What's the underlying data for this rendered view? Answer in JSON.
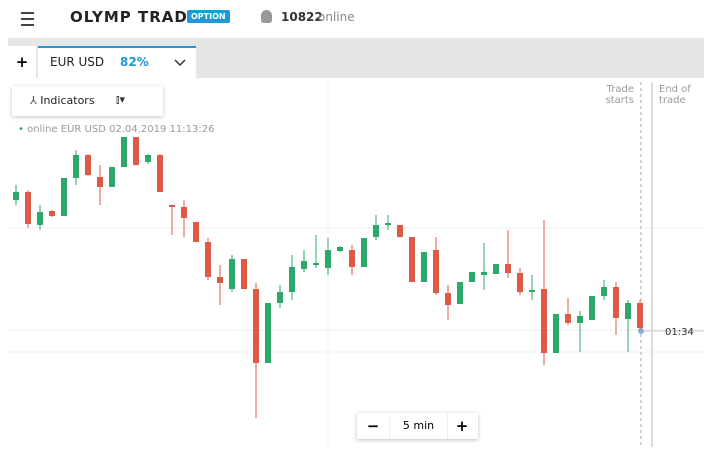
{
  "header": {
    "logo": "OLYMP TRADE",
    "badge": "OPTION",
    "online_count": "10822",
    "online_label": "online"
  },
  "tab": {
    "add": "+",
    "asset": "EUR USD",
    "payout": "82%"
  },
  "toolbar": {
    "indicators": "Indicators"
  },
  "chart_info": {
    "status": "online EUR USD",
    "timestamp": "02.04.2019 11:13:26"
  },
  "markers": {
    "trade_starts": "Trade starts",
    "end_of_trade": "End of trade",
    "timer": "01:34"
  },
  "zoom": {
    "minus": "−",
    "interval": "5 min",
    "plus": "+"
  },
  "chart_data": {
    "type": "candlestick",
    "up_color": "#2ea86a",
    "down_color": "#dd5a47",
    "ylim": [
      0,
      340
    ],
    "open": [
      250,
      258,
      225,
      239,
      234,
      272,
      295,
      273,
      263,
      283,
      313,
      288,
      295,
      245,
      243,
      228,
      208,
      173,
      161,
      191,
      161,
      87,
      147,
      158,
      181,
      185,
      182,
      199,
      200,
      183,
      213,
      225,
      225,
      213,
      168,
      200,
      157,
      146,
      168,
      175,
      176,
      186,
      177,
      158,
      161,
      97,
      136,
      127,
      130,
      154,
      163,
      131,
      147
    ],
    "close": [
      258,
      226,
      238,
      234,
      272,
      295,
      275,
      263,
      283,
      313,
      285,
      295,
      258,
      243,
      232,
      208,
      173,
      167,
      191,
      161,
      87,
      147,
      158,
      183,
      189,
      187,
      200,
      203,
      183,
      212,
      225,
      227,
      213,
      168,
      198,
      157,
      145,
      168,
      178,
      178,
      186,
      177,
      158,
      160,
      97,
      136,
      127,
      134,
      154,
      163,
      132,
      147,
      122
    ],
    "high": [
      265,
      260,
      245,
      240,
      272,
      300,
      296,
      285,
      283,
      313,
      313,
      296,
      296,
      245,
      250,
      228,
      212,
      185,
      195,
      191,
      167,
      147,
      165,
      195,
      200,
      215,
      212,
      204,
      205,
      212,
      235,
      235,
      225,
      213,
      198,
      213,
      165,
      168,
      178,
      207,
      186,
      220,
      182,
      175,
      230,
      136,
      152,
      139,
      154,
      170,
      168,
      150,
      150
    ],
    "low": [
      245,
      222,
      220,
      233,
      234,
      265,
      274,
      245,
      263,
      283,
      285,
      286,
      258,
      215,
      213,
      208,
      170,
      145,
      158,
      161,
      32,
      87,
      142,
      150,
      178,
      182,
      175,
      198,
      175,
      183,
      210,
      220,
      213,
      168,
      168,
      155,
      130,
      146,
      168,
      160,
      176,
      172,
      155,
      150,
      85,
      97,
      125,
      98,
      130,
      150,
      115,
      98,
      120
    ]
  }
}
